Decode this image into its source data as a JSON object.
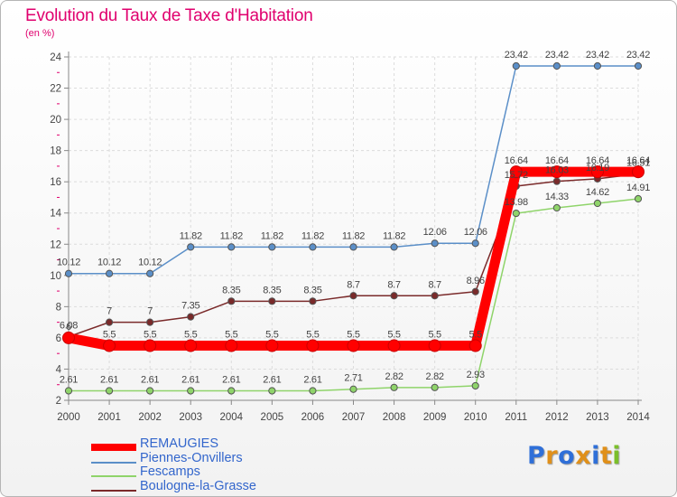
{
  "page": {
    "title": "Evolution du Taux de Taxe d'Habitation",
    "subtitle": "(en %)"
  },
  "logo": {
    "letters": [
      "P",
      "r",
      "o",
      "x",
      "i",
      "t",
      "i"
    ],
    "colors": [
      "#2f6fd8",
      "#e0901a",
      "#2f6fd8",
      "#e0901a",
      "#2f6fd8",
      "#e0901a",
      "#7bbf2a"
    ]
  },
  "chart_data": {
    "type": "line",
    "x": [
      "2000",
      "2001",
      "2002",
      "2003",
      "2004",
      "2005",
      "2006",
      "2007",
      "2008",
      "2009",
      "2010",
      "2011",
      "2012",
      "2013",
      "2014"
    ],
    "ylim": [
      2,
      24
    ],
    "yticks": [
      2,
      4,
      6,
      8,
      10,
      12,
      14,
      16,
      18,
      20,
      22,
      24
    ],
    "grid": true,
    "legend_position": "bottom-left",
    "series": [
      {
        "name": "Piennes-Onvillers",
        "color": "#5b8fc8",
        "values": [
          10.12,
          10.12,
          10.12,
          11.82,
          11.82,
          11.82,
          11.82,
          11.82,
          11.82,
          12.06,
          12.06,
          23.42,
          23.42,
          23.42,
          23.42
        ],
        "labels": [
          "10.12",
          "10.12",
          "10.12",
          "11.82",
          "11.82",
          "11.82",
          "11.82",
          "11.82",
          "11.82",
          "12.06",
          "12.06",
          "23.42",
          "23.42",
          "23.42",
          "23.42"
        ]
      },
      {
        "name": "Fescamps",
        "color": "#8fd46a",
        "values": [
          2.61,
          2.61,
          2.61,
          2.61,
          2.61,
          2.61,
          2.61,
          2.71,
          2.82,
          2.82,
          2.93,
          13.98,
          14.33,
          14.62,
          14.91
        ],
        "labels": [
          "2.61",
          "2.61",
          "2.61",
          "2.61",
          "2.61",
          "2.61",
          "2.61",
          "2.71",
          "2.82",
          "2.82",
          "2.93",
          "13.98",
          "14.33",
          "14.62",
          "14.91"
        ]
      },
      {
        "name": "Boulogne-la-Grasse",
        "color": "#7a2a2a",
        "values": [
          6.08,
          7,
          7,
          7.35,
          8.35,
          8.35,
          8.35,
          8.7,
          8.7,
          8.7,
          8.96,
          15.72,
          16.03,
          16.19,
          16.51
        ],
        "labels": [
          "6.08",
          "7",
          "7",
          "7.35",
          "8.35",
          "8.35",
          "8.35",
          "8.7",
          "8.7",
          "8.7",
          "8.96",
          "15.72",
          "16.03",
          "16.19",
          "16.51"
        ]
      },
      {
        "name": "REMAUGIES",
        "color": "#ff0000",
        "values": [
          6,
          5.5,
          5.5,
          5.5,
          5.5,
          5.5,
          5.5,
          5.5,
          5.5,
          5.5,
          5.5,
          16.64,
          16.64,
          16.64,
          16.64
        ],
        "labels": [
          "6",
          "5.5",
          "5.5",
          "5.5",
          "5.5",
          "5.5",
          "5.5",
          "5.5",
          "5.5",
          "5.5",
          "5.5",
          "16.64",
          "16.64",
          "16.64",
          "16.64"
        ]
      }
    ],
    "legend_order": [
      "REMAUGIES",
      "Piennes-Onvillers",
      "Fescamps",
      "Boulogne-la-Grasse"
    ]
  }
}
